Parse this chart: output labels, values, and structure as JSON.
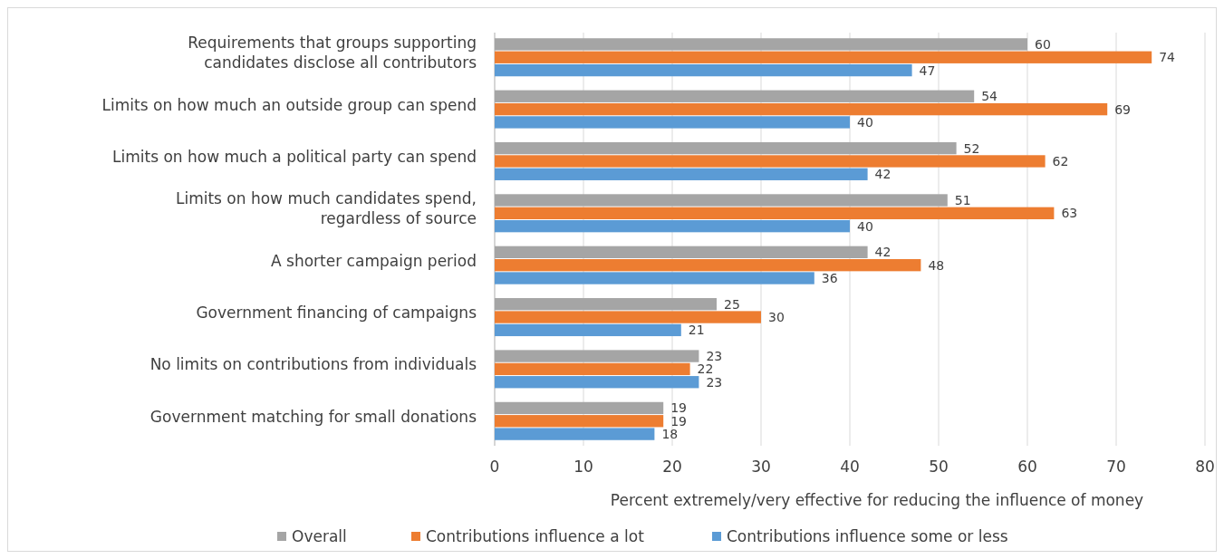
{
  "chart_data": {
    "type": "bar",
    "orientation": "horizontal",
    "xlabel": "Percent extremely/very effective for reducing the influence of money",
    "categories": [
      "Requirements that groups supporting candidates disclose all contributors",
      "Limits on how much an outside group can spend",
      "Limits on how much a political party can spend",
      "Limits on how much candidates spend, regardless of source",
      "A shorter campaign period",
      "Government financing of campaigns",
      "No limits on contributions from individuals",
      "Government matching for small donations"
    ],
    "series": [
      {
        "name": "Overall",
        "color": "#a5a5a5",
        "values": [
          60,
          54,
          52,
          51,
          42,
          25,
          23,
          19
        ]
      },
      {
        "name": "Contributions influence a lot",
        "color": "#ed7d31",
        "values": [
          74,
          69,
          62,
          63,
          48,
          30,
          22,
          19
        ]
      },
      {
        "name": "Contributions influence some or less",
        "color": "#5b9bd5",
        "values": [
          47,
          40,
          42,
          40,
          36,
          21,
          23,
          18
        ]
      }
    ],
    "xlim": [
      0,
      80
    ],
    "xticks": [
      0,
      10,
      20,
      30,
      40,
      50,
      60,
      70,
      80
    ],
    "grid": "x",
    "legend": "bottom",
    "data_labels": true
  }
}
